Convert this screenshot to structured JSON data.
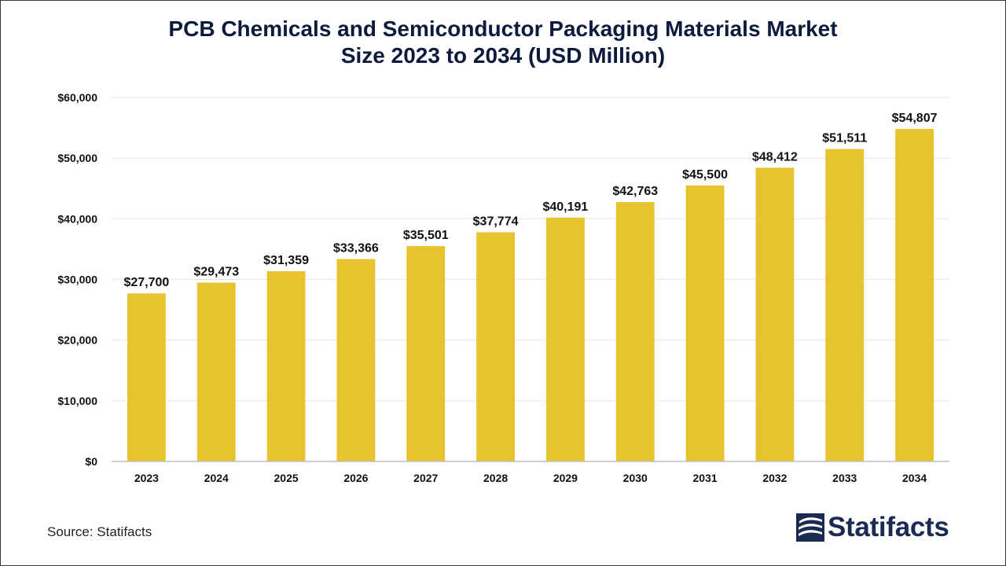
{
  "chart_data": {
    "type": "bar",
    "title_lines": [
      "PCB Chemicals and Semiconductor Packaging Materials Market",
      "Size 2023 to 2034 (USD Million)"
    ],
    "categories": [
      "2023",
      "2024",
      "2025",
      "2026",
      "2027",
      "2028",
      "2029",
      "2030",
      "2031",
      "2032",
      "2033",
      "2034"
    ],
    "values": [
      27700,
      29473,
      31359,
      33366,
      35501,
      37774,
      40191,
      42763,
      45500,
      48412,
      51511,
      54807
    ],
    "data_labels": [
      "$27,700",
      "$29,473",
      "$31,359",
      "$33,366",
      "$35,501",
      "$37,774",
      "$40,191",
      "$42,763",
      "$45,500",
      "$48,412",
      "$51,511",
      "$54,807"
    ],
    "y_ticks": [
      0,
      10000,
      20000,
      30000,
      40000,
      50000,
      60000
    ],
    "y_tick_labels": [
      "$0",
      "$10,000",
      "$20,000",
      "$30,000",
      "$40,000",
      "$50,000",
      "$60,000"
    ],
    "ylim": [
      0,
      60000
    ],
    "xlabel": "",
    "ylabel": "",
    "grid": true,
    "bar_color": "#E8C330",
    "grid_color": "#e6e6e6",
    "axis_color": "#bfbfbf"
  },
  "footer": {
    "source": "Source: Statifacts",
    "brand": "Statifacts",
    "brand_icon": "statifacts-logo-icon"
  }
}
